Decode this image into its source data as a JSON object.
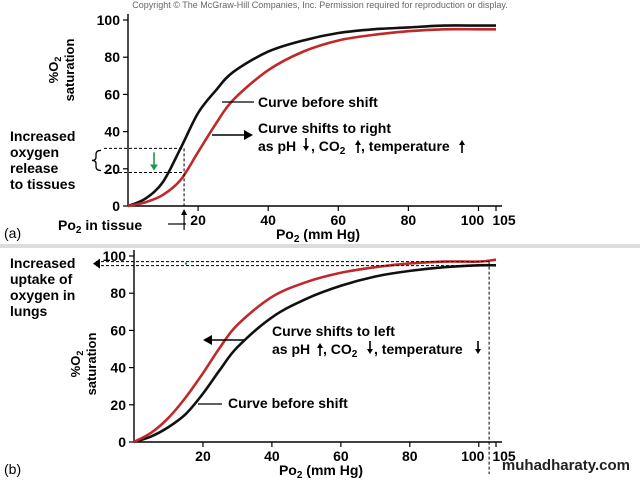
{
  "copyright": "Copyright © The McGraw-Hill Companies, Inc. Permission required for reproduction or display.",
  "watermark": "muhadharaty.com",
  "chart_data": [
    {
      "panel_label": "(a)",
      "type": "line",
      "xlabel": "Po₂ (mm Hg)",
      "ylabel": "%O₂ saturation",
      "xlim": [
        0,
        105
      ],
      "ylim": [
        0,
        100
      ],
      "x_ticks": [
        20,
        40,
        60,
        80,
        100,
        105
      ],
      "y_ticks": [
        0,
        20,
        40,
        60,
        80,
        100
      ],
      "series": [
        {
          "name": "Curve before shift",
          "color": "#111111",
          "x": [
            0,
            5,
            10,
            15,
            20,
            25,
            30,
            40,
            50,
            60,
            70,
            80,
            90,
            100,
            105
          ],
          "y": [
            0,
            4,
            13,
            31,
            50,
            62,
            72,
            83,
            89,
            93,
            95,
            96,
            97,
            97,
            97
          ]
        },
        {
          "name": "Curve shifts to right",
          "color": "#c0282a",
          "x": [
            0,
            5,
            10,
            15,
            20,
            25,
            30,
            40,
            50,
            60,
            70,
            80,
            90,
            100,
            105
          ],
          "y": [
            0,
            2,
            6,
            14,
            29,
            44,
            57,
            73,
            83,
            89,
            92,
            94,
            95,
            95,
            95
          ]
        }
      ],
      "annotations": {
        "before_shift": "Curve before shift",
        "shift_line1": "Curve shifts to right",
        "shift_line2_a": "as pH",
        "shift_line2_b": ", CO",
        "shift_line2_c": "2",
        "shift_line2_d": ", temperature",
        "left_note": [
          "Increased",
          "oxygen",
          "release",
          "to tissues"
        ],
        "tissue_label_a": "Po",
        "tissue_label_b": "2",
        "tissue_label_c": " in tissue",
        "tissue_po2": 16,
        "release_from": 31,
        "release_to": 18
      }
    },
    {
      "panel_label": "(b)",
      "type": "line",
      "xlabel": "Po₂ (mm Hg)",
      "ylabel": "%O₂ saturation",
      "xlim": [
        0,
        105
      ],
      "ylim": [
        0,
        100
      ],
      "x_ticks": [
        20,
        40,
        60,
        80,
        100,
        105
      ],
      "y_ticks": [
        0,
        20,
        40,
        60,
        80,
        100
      ],
      "series": [
        {
          "name": "Curve before shift",
          "color": "#111111",
          "x": [
            0,
            5,
            10,
            15,
            20,
            25,
            30,
            40,
            50,
            60,
            70,
            80,
            90,
            100,
            105
          ],
          "y": [
            0,
            3,
            8,
            15,
            26,
            39,
            51,
            67,
            77,
            84,
            89,
            92,
            94,
            95,
            95
          ]
        },
        {
          "name": "Curve shifts to left",
          "color": "#c0282a",
          "x": [
            0,
            5,
            10,
            15,
            20,
            25,
            30,
            40,
            50,
            60,
            70,
            80,
            90,
            100,
            105
          ],
          "y": [
            0,
            5,
            13,
            24,
            37,
            51,
            63,
            78,
            86,
            91,
            94,
            96,
            97,
            97,
            98
          ]
        }
      ],
      "annotations": {
        "before_shift": "Curve before shift",
        "shift_line1": "Curve shifts to left",
        "shift_line2_a": "as pH",
        "shift_line2_b": ", CO",
        "shift_line2_c": "2",
        "shift_line2_d": ", temperature",
        "left_note": [
          "Increased",
          "uptake of",
          "oxygen in",
          "lungs"
        ],
        "lung_po2": 103,
        "uptake_level": 97
      }
    }
  ]
}
